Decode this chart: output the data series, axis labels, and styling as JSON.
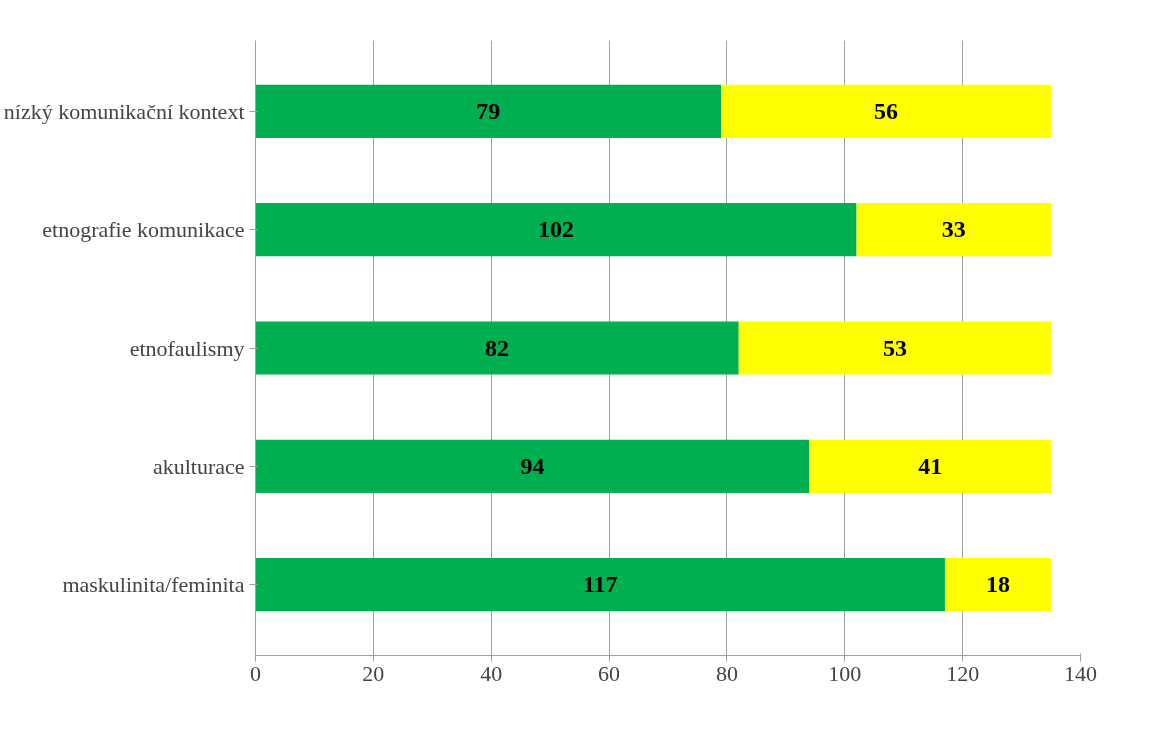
{
  "chart_data": {
    "type": "bar",
    "orientation": "horizontal",
    "stacked": true,
    "categories": [
      "nízký komunikační kontext",
      "etnografie komunikace",
      "etnofaulismy",
      "akulturace",
      "maskulinita/feminita"
    ],
    "series": [
      {
        "color": "#00b050",
        "values": [
          79,
          102,
          82,
          94,
          117
        ]
      },
      {
        "color": "#ffff00",
        "values": [
          56,
          33,
          53,
          41,
          18
        ]
      }
    ],
    "xlim": [
      0,
      140
    ],
    "xticks": [
      0,
      20,
      40,
      60,
      80,
      100,
      120,
      140
    ],
    "grid": "x",
    "data_labels": true
  }
}
